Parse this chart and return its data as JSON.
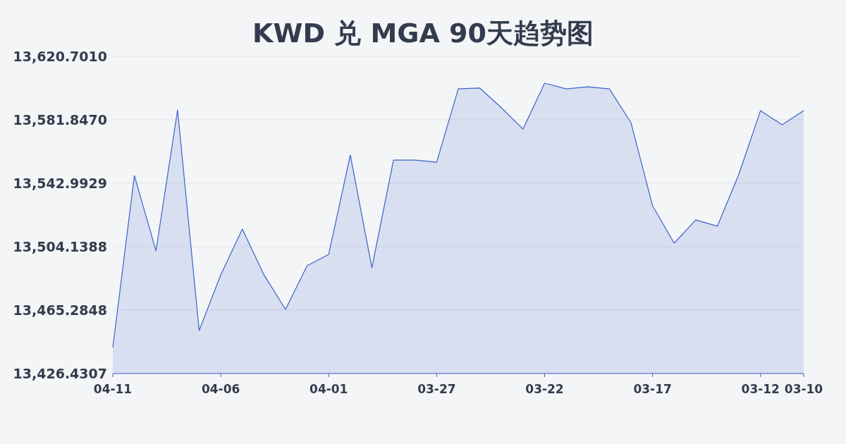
{
  "chart_data": {
    "type": "area",
    "title": "KWD 兑 MGA 90天趋势图",
    "categories": [
      "04-11",
      null,
      null,
      null,
      null,
      "04-06",
      null,
      null,
      null,
      null,
      "04-01",
      null,
      null,
      null,
      null,
      "03-27",
      null,
      null,
      null,
      null,
      "03-22",
      null,
      null,
      null,
      null,
      "03-17",
      null,
      null,
      null,
      null,
      "03-12",
      null,
      "03-10"
    ],
    "series": [
      {
        "color": "#3a63c8",
        "values": [
          13442.4,
          13547.7,
          13501.6,
          13587.9,
          13452.8,
          13486.9,
          13514.9,
          13486.9,
          13465.7,
          13492.5,
          13499.4,
          13560.3,
          13491.2,
          13557.2,
          13557.2,
          13555.9,
          13600.8,
          13601.3,
          13589.2,
          13576.2,
          13604.3,
          13600.8,
          13602.1,
          13600.8,
          13580.1,
          13529.2,
          13506.3,
          13520.5,
          13516.7,
          13548.6,
          13587.5,
          13578.8,
          13587.5
        ]
      }
    ],
    "ylim": [
      13426.4307,
      13620.701
    ],
    "yticks": [
      {
        "value": 13426.4307,
        "label": "13,426.4307"
      },
      {
        "value": 13465.2848,
        "label": "13,465.2848"
      },
      {
        "value": 13504.1388,
        "label": "13,504.1388"
      },
      {
        "value": 13542.9929,
        "label": "13,542.9929"
      },
      {
        "value": 13581.847,
        "label": "13,581.8470"
      },
      {
        "value": 13620.701,
        "label": "13,620.7010"
      }
    ],
    "grid": "y"
  }
}
